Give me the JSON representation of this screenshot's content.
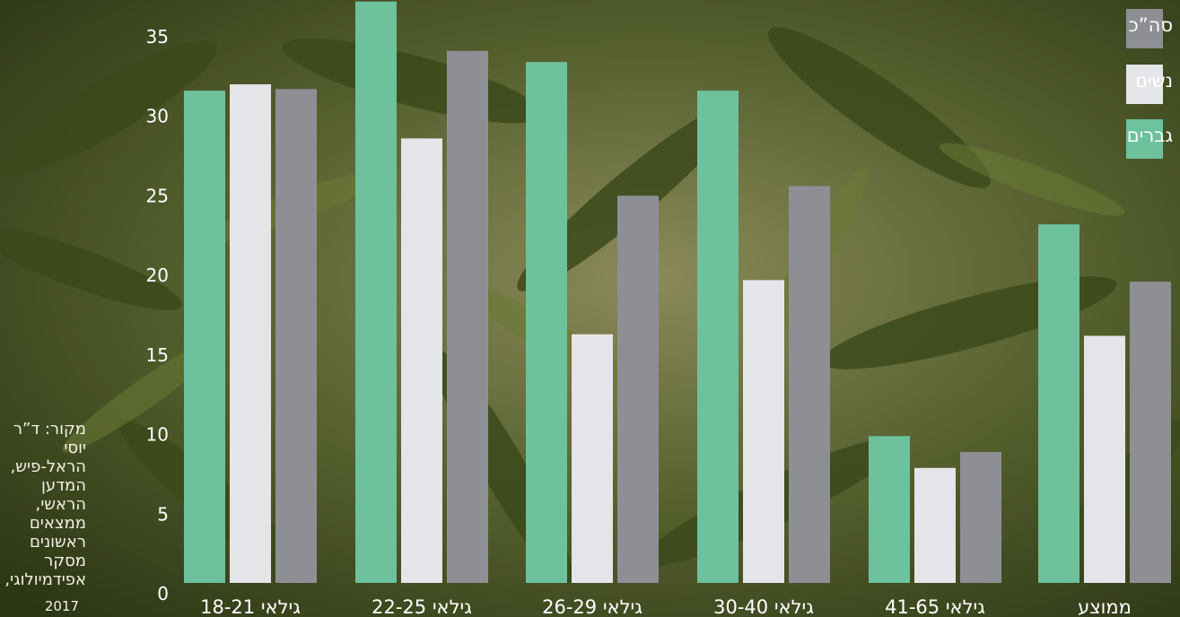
{
  "chart_data": {
    "type": "bar",
    "categories": [
      "גילאי 18-21",
      "גילאי 22-25",
      "גילאי 26-29",
      "גילאי 30-40",
      "גילאי 41-65",
      "ממוצע"
    ],
    "series": [
      {
        "name": "גברים",
        "color": "#6dc19c",
        "values": [
          31.6,
          37.2,
          33.4,
          31.6,
          9.9,
          23.2
        ]
      },
      {
        "name": "נשים",
        "color": "#e4e5e8",
        "values": [
          32.0,
          28.6,
          16.3,
          19.7,
          7.9,
          16.2
        ]
      },
      {
        "name": "סה\"כ",
        "color": "#8e8f95",
        "values": [
          31.7,
          34.1,
          25.0,
          25.6,
          8.9,
          19.6
        ]
      }
    ],
    "yticks": [
      0,
      5,
      10,
      15,
      20,
      25,
      30,
      35
    ],
    "ylim": [
      0,
      37
    ],
    "title": "",
    "xlabel": "",
    "ylabel": "",
    "legend_position": "top-right",
    "grid": false
  },
  "legend": {
    "items": [
      {
        "label": "סה”כ",
        "color": "#8e8f95"
      },
      {
        "label": "נשים",
        "color": "#e4e5e8"
      },
      {
        "label": "גברים",
        "color": "#6dc19c"
      }
    ]
  },
  "source": {
    "text": "מקור: ד”ר יוסי הראל-פיש, המדען הראשי, ממצאים ראשונים מסקר אפידמיולוגי,",
    "year": "2017"
  },
  "background": {
    "description_color": "#4b5a2a"
  }
}
